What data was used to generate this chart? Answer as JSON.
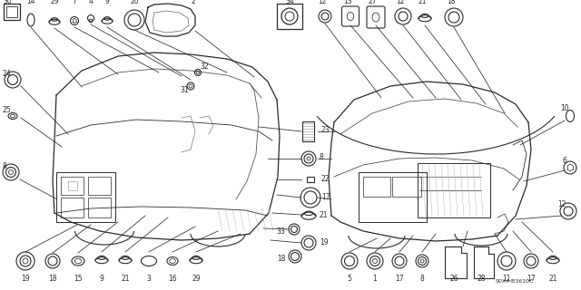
{
  "bg_color": "#ffffff",
  "fig_width": 6.4,
  "fig_height": 3.2,
  "dpi": 100,
  "watermark": "S0X4-B3610C",
  "line_color": "#2a2a2a",
  "gray_color": "#888888",
  "light_gray": "#cccccc"
}
